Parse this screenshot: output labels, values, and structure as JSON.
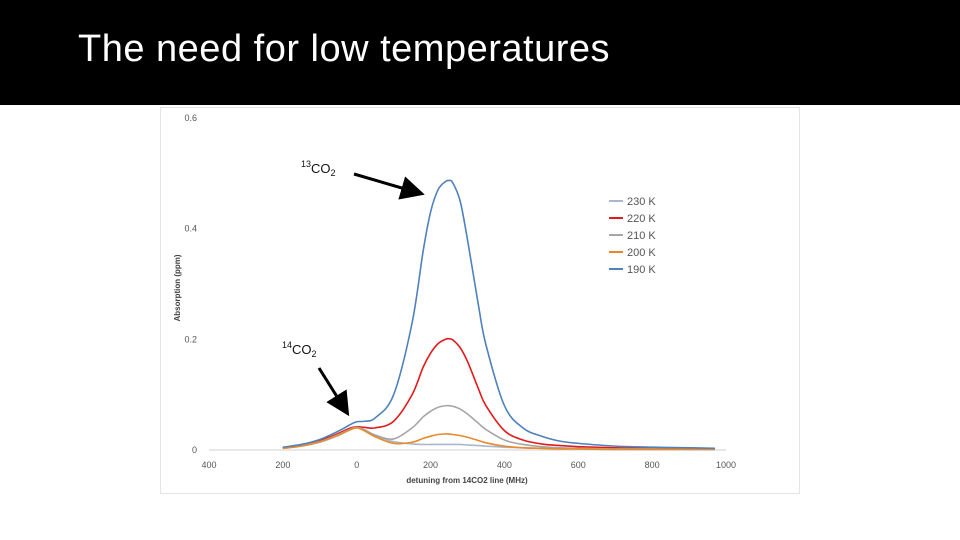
{
  "slide": {
    "title": "The need for low temperatures"
  },
  "chart_data": {
    "type": "line",
    "xlabel": "detuning from 14CO2 line (MHz)",
    "ylabel": "Absorption (ppm)",
    "xlim": [
      -400,
      1000
    ],
    "ylim": [
      0,
      0.6
    ],
    "x_ticks": [
      "400",
      "200",
      "0",
      "200",
      "400",
      "600",
      "800",
      "1000"
    ],
    "x_tick_values": [
      -400,
      -200,
      0,
      200,
      400,
      600,
      800,
      1000
    ],
    "y_ticks": [
      "0",
      "0.2",
      "0.4",
      "0.6"
    ],
    "y_tick_values": [
      0,
      0.2,
      0.4,
      0.6
    ],
    "legend_position": "right",
    "x": [
      -200,
      -150,
      -100,
      -50,
      -20,
      0,
      20,
      50,
      100,
      150,
      180,
      200,
      220,
      240,
      250,
      260,
      280,
      300,
      330,
      350,
      400,
      450,
      500,
      550,
      600,
      700,
      800,
      900,
      970
    ],
    "series": [
      {
        "name": "230 K",
        "color": "#a9b6cc",
        "values": [
          0.003,
          0.007,
          0.014,
          0.026,
          0.036,
          0.04,
          0.036,
          0.026,
          0.015,
          0.011,
          0.01,
          0.01,
          0.01,
          0.01,
          0.01,
          0.01,
          0.01,
          0.009,
          0.008,
          0.007,
          0.005,
          0.004,
          0.003,
          0.002,
          0.002,
          0.001,
          0.001,
          0.001,
          0.001
        ]
      },
      {
        "name": "220 K",
        "color": "#e31a1c",
        "values": [
          0.004,
          0.009,
          0.017,
          0.03,
          0.039,
          0.042,
          0.041,
          0.04,
          0.052,
          0.1,
          0.15,
          0.175,
          0.192,
          0.2,
          0.201,
          0.199,
          0.185,
          0.16,
          0.11,
          0.08,
          0.035,
          0.018,
          0.011,
          0.008,
          0.006,
          0.004,
          0.003,
          0.002,
          0.002
        ]
      },
      {
        "name": "210 K",
        "color": "#a6a6a6",
        "values": [
          0.003,
          0.008,
          0.015,
          0.028,
          0.037,
          0.041,
          0.037,
          0.027,
          0.02,
          0.04,
          0.06,
          0.07,
          0.077,
          0.08,
          0.08,
          0.079,
          0.074,
          0.065,
          0.048,
          0.037,
          0.018,
          0.01,
          0.006,
          0.004,
          0.003,
          0.002,
          0.002,
          0.001,
          0.001
        ]
      },
      {
        "name": "200 K",
        "color": "#e8892a",
        "values": [
          0.003,
          0.007,
          0.015,
          0.027,
          0.036,
          0.04,
          0.035,
          0.024,
          0.012,
          0.014,
          0.021,
          0.025,
          0.028,
          0.029,
          0.029,
          0.028,
          0.026,
          0.023,
          0.017,
          0.013,
          0.007,
          0.004,
          0.003,
          0.002,
          0.002,
          0.001,
          0.001,
          0.001,
          0.001
        ]
      },
      {
        "name": "190 K",
        "color": "#4f81bd",
        "values": [
          0.005,
          0.01,
          0.019,
          0.034,
          0.045,
          0.051,
          0.052,
          0.058,
          0.1,
          0.23,
          0.36,
          0.43,
          0.47,
          0.485,
          0.487,
          0.483,
          0.45,
          0.38,
          0.26,
          0.19,
          0.08,
          0.04,
          0.025,
          0.016,
          0.012,
          0.007,
          0.005,
          0.004,
          0.003
        ]
      }
    ],
    "annotations": [
      {
        "id": "13co2",
        "sup": "13",
        "base": "CO",
        "sub": "2",
        "points_to_x": 240,
        "points_to_y": 0.46
      },
      {
        "id": "14co2",
        "sup": "14",
        "base": "CO",
        "sub": "2",
        "points_to_x": -10,
        "points_to_y": 0.055
      }
    ]
  }
}
